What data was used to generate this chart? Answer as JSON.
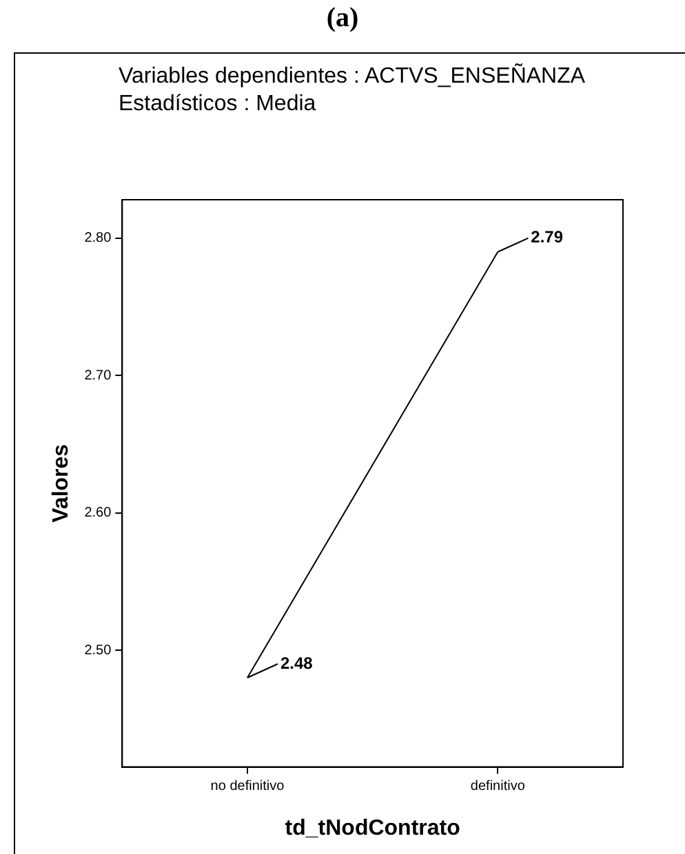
{
  "chart_data": {
    "type": "line",
    "title": "(a)",
    "subtitle": "Variables dependientes : ACTVS_ENSEÑANZA",
    "annotations": [
      "Estadísticos : Media"
    ],
    "xlabel": "td_tNodContrato",
    "ylabel": "Valores",
    "categories": [
      "no definitivo",
      "definitivo"
    ],
    "series": [
      {
        "color": "#000000",
        "values": [
          2.48,
          2.79
        ]
      }
    ],
    "ylim": [
      2.415,
      2.828
    ],
    "yticks": [
      {
        "value": 2.5,
        "label": "2.50"
      },
      {
        "value": 2.6,
        "label": "2.60"
      },
      {
        "value": 2.7,
        "label": "2.70"
      },
      {
        "value": 2.8,
        "label": "2.80"
      }
    ],
    "data_labels": true,
    "grid": false,
    "legend": false,
    "marker": "none",
    "line_style": "solid"
  }
}
